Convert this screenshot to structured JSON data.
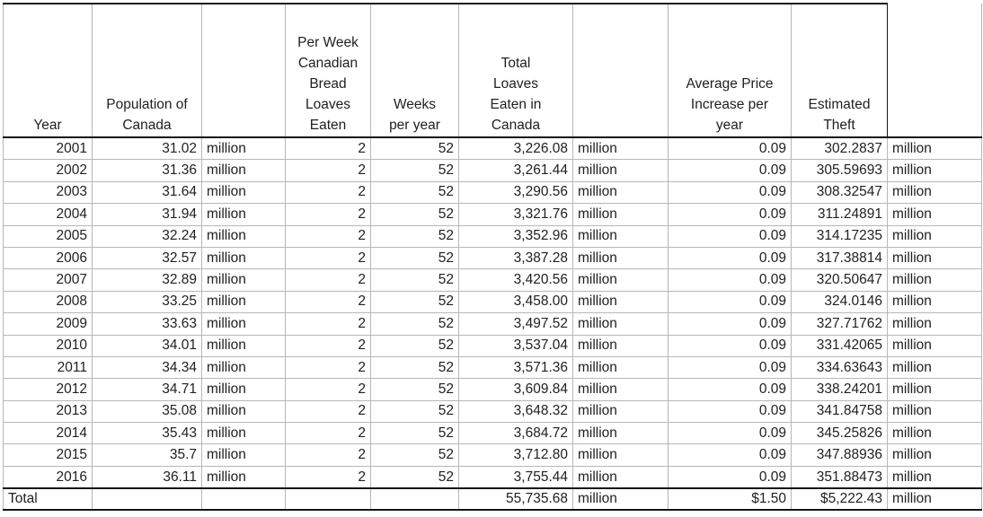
{
  "colors": {
    "background": "#ffffff",
    "gridline": "#b7b7b7",
    "box_border": "#151515",
    "text": "#212121"
  },
  "table": {
    "columns": [
      {
        "id": "year",
        "label": "Year"
      },
      {
        "id": "population",
        "label": "Population of\nCanada"
      },
      {
        "id": "pop_unit",
        "label": ""
      },
      {
        "id": "loaves_per_week",
        "label": "Per Week\nCanadian\nBread\nLoaves\nEaten"
      },
      {
        "id": "weeks",
        "label": "Weeks\nper year"
      },
      {
        "id": "total_loaves",
        "label": "Total\nLoaves\nEaten in\nCanada"
      },
      {
        "id": "total_unit",
        "label": ""
      },
      {
        "id": "price_increase",
        "label": "Average Price\nIncrease per\nyear"
      },
      {
        "id": "theft",
        "label": "Estimated\nTheft"
      },
      {
        "id": "theft_unit",
        "label": ""
      }
    ],
    "rows": [
      {
        "year": "2001",
        "population": "31.02",
        "pop_unit": "million",
        "loaves_per_week": "2",
        "weeks": "52",
        "total_loaves": "3,226.08",
        "total_unit": "million",
        "price_increase": "0.09",
        "theft": "302.2837",
        "theft_unit": "million"
      },
      {
        "year": "2002",
        "population": "31.36",
        "pop_unit": "million",
        "loaves_per_week": "2",
        "weeks": "52",
        "total_loaves": "3,261.44",
        "total_unit": "million",
        "price_increase": "0.09",
        "theft": "305.59693",
        "theft_unit": "million"
      },
      {
        "year": "2003",
        "population": "31.64",
        "pop_unit": "million",
        "loaves_per_week": "2",
        "weeks": "52",
        "total_loaves": "3,290.56",
        "total_unit": "million",
        "price_increase": "0.09",
        "theft": "308.32547",
        "theft_unit": "million"
      },
      {
        "year": "2004",
        "population": "31.94",
        "pop_unit": "million",
        "loaves_per_week": "2",
        "weeks": "52",
        "total_loaves": "3,321.76",
        "total_unit": "million",
        "price_increase": "0.09",
        "theft": "311.24891",
        "theft_unit": "million"
      },
      {
        "year": "2005",
        "population": "32.24",
        "pop_unit": "million",
        "loaves_per_week": "2",
        "weeks": "52",
        "total_loaves": "3,352.96",
        "total_unit": "million",
        "price_increase": "0.09",
        "theft": "314.17235",
        "theft_unit": "million"
      },
      {
        "year": "2006",
        "population": "32.57",
        "pop_unit": "million",
        "loaves_per_week": "2",
        "weeks": "52",
        "total_loaves": "3,387.28",
        "total_unit": "million",
        "price_increase": "0.09",
        "theft": "317.38814",
        "theft_unit": "million"
      },
      {
        "year": "2007",
        "population": "32.89",
        "pop_unit": "million",
        "loaves_per_week": "2",
        "weeks": "52",
        "total_loaves": "3,420.56",
        "total_unit": "million",
        "price_increase": "0.09",
        "theft": "320.50647",
        "theft_unit": "million"
      },
      {
        "year": "2008",
        "population": "33.25",
        "pop_unit": "million",
        "loaves_per_week": "2",
        "weeks": "52",
        "total_loaves": "3,458.00",
        "total_unit": "million",
        "price_increase": "0.09",
        "theft": "324.0146",
        "theft_unit": "million"
      },
      {
        "year": "2009",
        "population": "33.63",
        "pop_unit": "million",
        "loaves_per_week": "2",
        "weeks": "52",
        "total_loaves": "3,497.52",
        "total_unit": "million",
        "price_increase": "0.09",
        "theft": "327.71762",
        "theft_unit": "million"
      },
      {
        "year": "2010",
        "population": "34.01",
        "pop_unit": "million",
        "loaves_per_week": "2",
        "weeks": "52",
        "total_loaves": "3,537.04",
        "total_unit": "million",
        "price_increase": "0.09",
        "theft": "331.42065",
        "theft_unit": "million"
      },
      {
        "year": "2011",
        "population": "34.34",
        "pop_unit": "million",
        "loaves_per_week": "2",
        "weeks": "52",
        "total_loaves": "3,571.36",
        "total_unit": "million",
        "price_increase": "0.09",
        "theft": "334.63643",
        "theft_unit": "million"
      },
      {
        "year": "2012",
        "population": "34.71",
        "pop_unit": "million",
        "loaves_per_week": "2",
        "weeks": "52",
        "total_loaves": "3,609.84",
        "total_unit": "million",
        "price_increase": "0.09",
        "theft": "338.24201",
        "theft_unit": "million"
      },
      {
        "year": "2013",
        "population": "35.08",
        "pop_unit": "million",
        "loaves_per_week": "2",
        "weeks": "52",
        "total_loaves": "3,648.32",
        "total_unit": "million",
        "price_increase": "0.09",
        "theft": "341.84758",
        "theft_unit": "million"
      },
      {
        "year": "2014",
        "population": "35.43",
        "pop_unit": "million",
        "loaves_per_week": "2",
        "weeks": "52",
        "total_loaves": "3,684.72",
        "total_unit": "million",
        "price_increase": "0.09",
        "theft": "345.25826",
        "theft_unit": "million"
      },
      {
        "year": "2015",
        "population": "35.7",
        "pop_unit": "million",
        "loaves_per_week": "2",
        "weeks": "52",
        "total_loaves": "3,712.80",
        "total_unit": "million",
        "price_increase": "0.09",
        "theft": "347.88936",
        "theft_unit": "million"
      },
      {
        "year": "2016",
        "population": "36.11",
        "pop_unit": "million",
        "loaves_per_week": "2",
        "weeks": "52",
        "total_loaves": "3,755.44",
        "total_unit": "million",
        "price_increase": "0.09",
        "theft": "351.88473",
        "theft_unit": "million"
      }
    ],
    "totals": {
      "label": "Total",
      "population": "",
      "pop_unit": "",
      "loaves_per_week": "",
      "weeks": "",
      "total_loaves": "55,735.68",
      "total_unit": "million",
      "price_increase": "$1.50",
      "theft": "$5,222.43",
      "theft_unit": "million"
    }
  }
}
